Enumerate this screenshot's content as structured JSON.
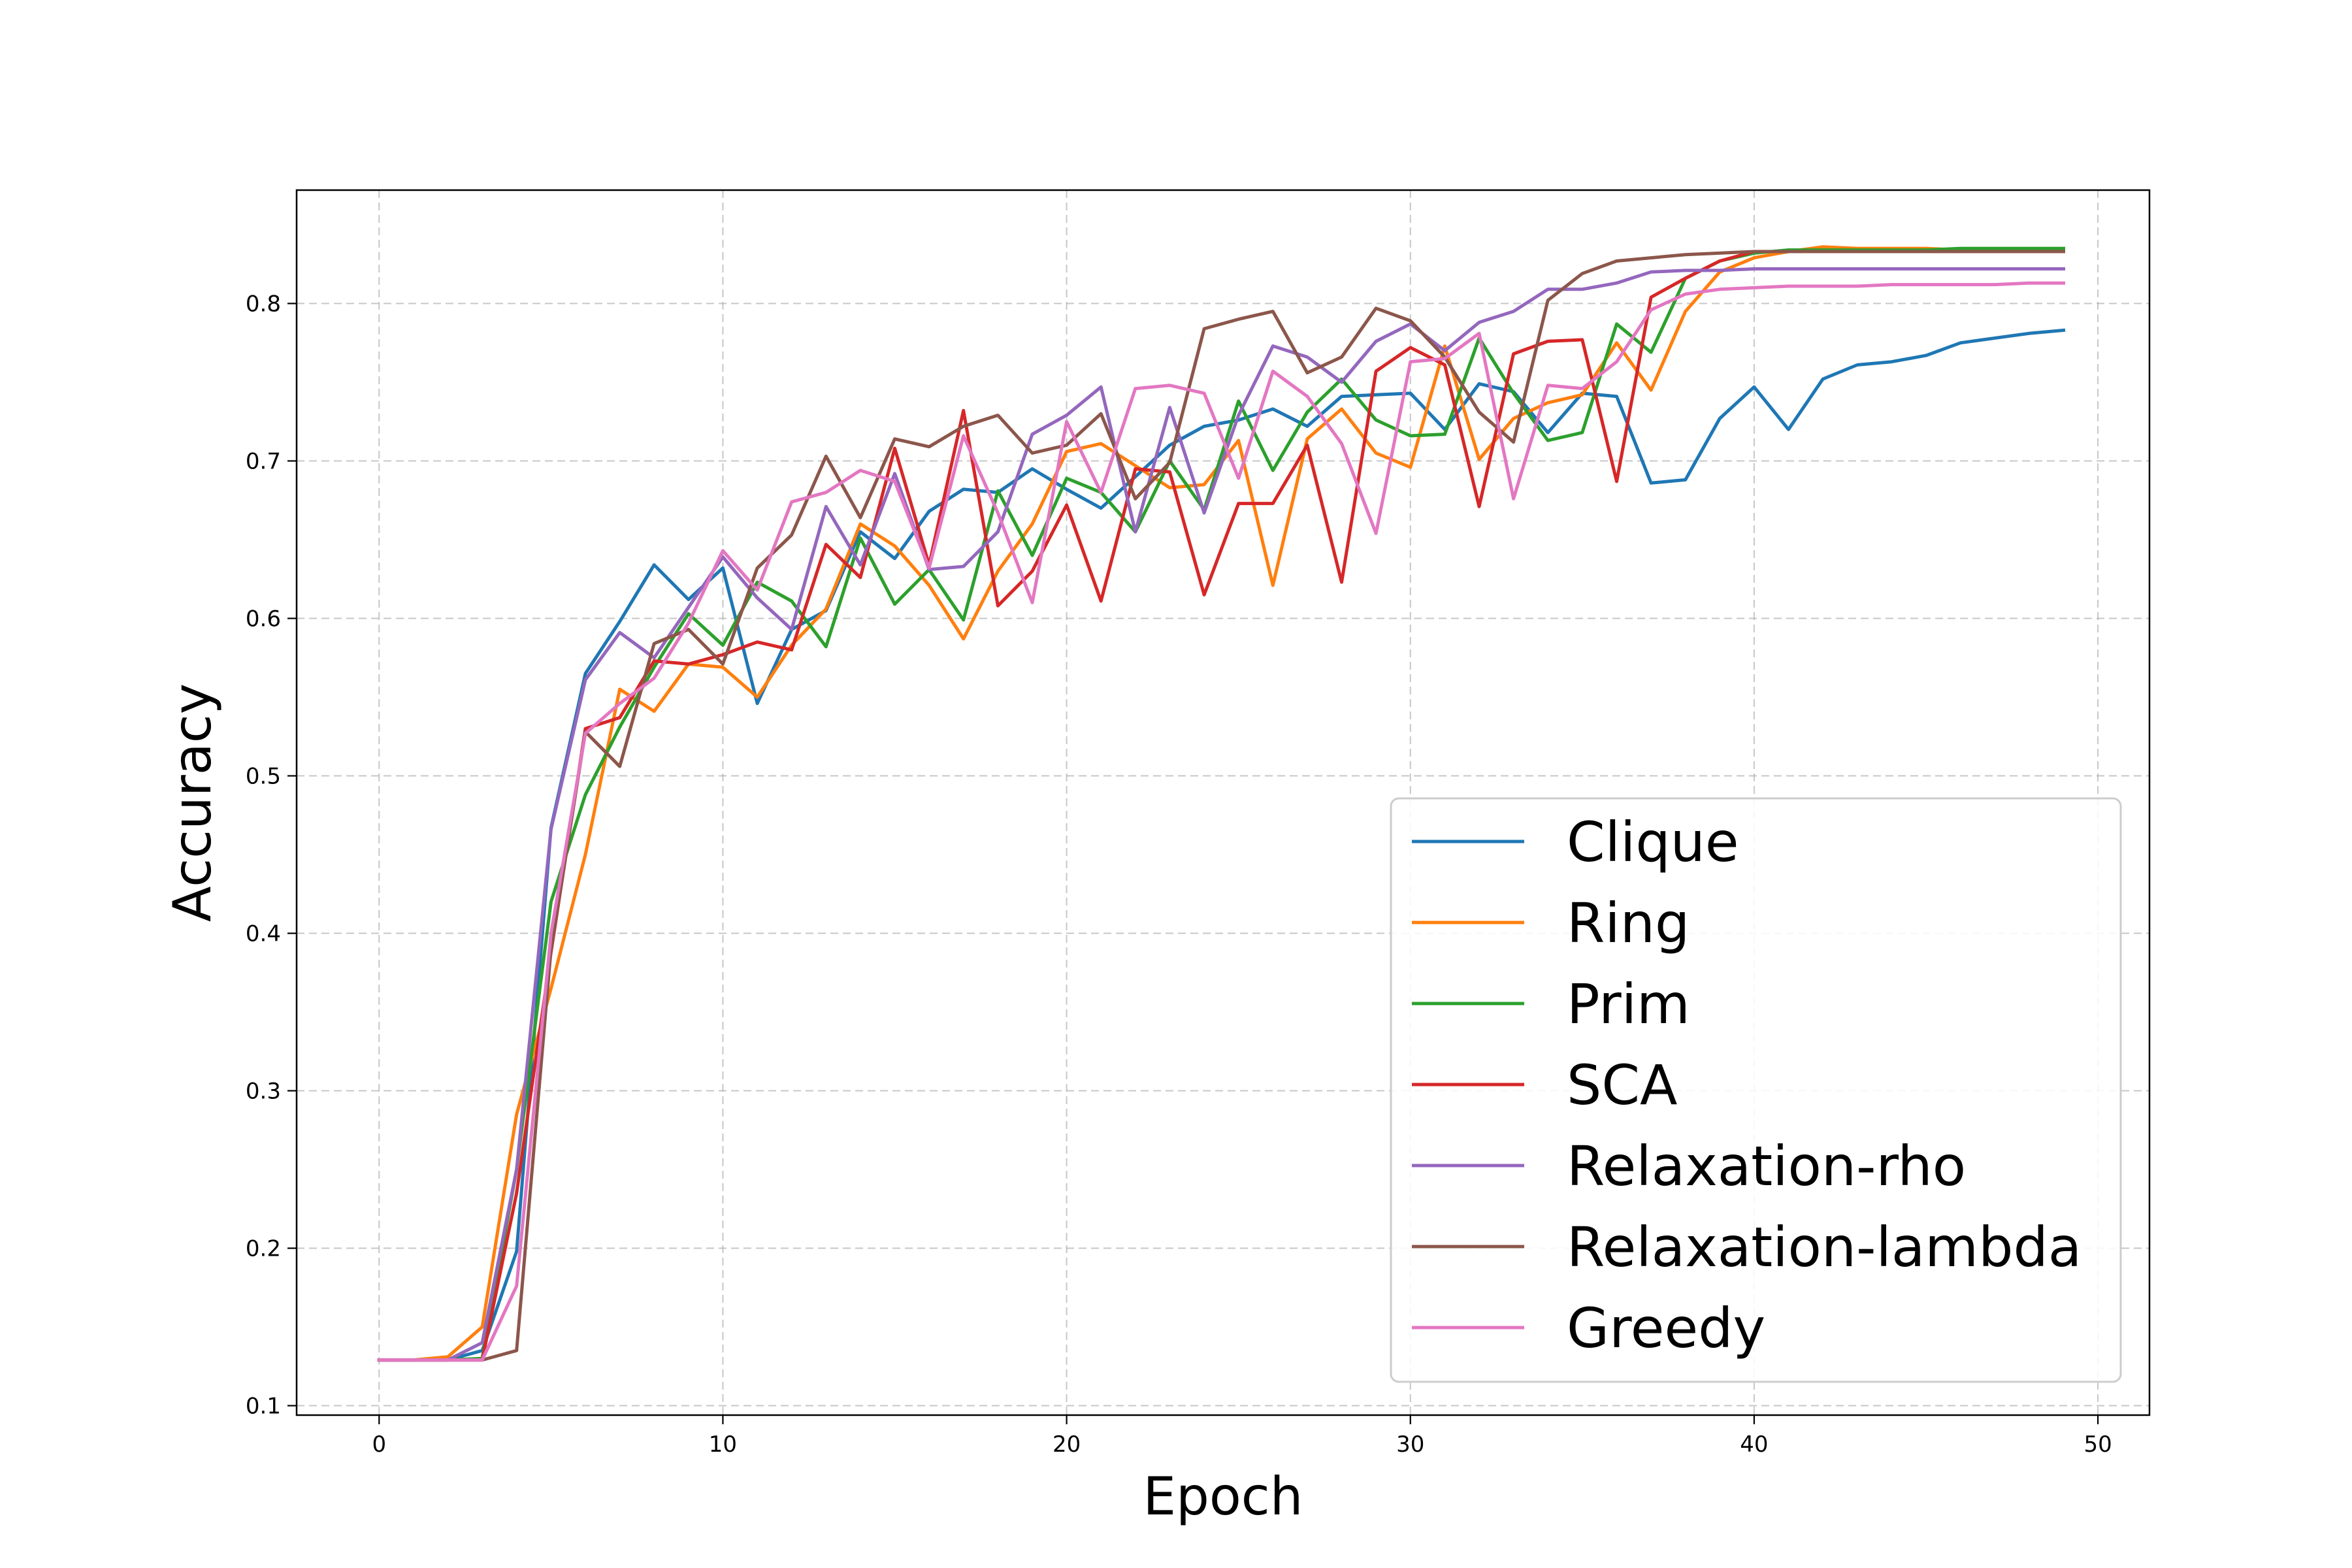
{
  "chart_data": {
    "type": "line",
    "title": "",
    "xlabel": "Epoch",
    "ylabel": "Accuracy",
    "xlim": [
      -2.4,
      51.5
    ],
    "ylim": [
      0.094,
      0.872
    ],
    "xticks": [
      0,
      10,
      20,
      30,
      40,
      50
    ],
    "yticks": [
      0.1,
      0.2,
      0.3,
      0.4,
      0.5,
      0.6,
      0.7,
      0.8
    ],
    "xtick_labels": [
      "0",
      "10",
      "20",
      "30",
      "40",
      "50"
    ],
    "ytick_labels": [
      "0.1",
      "0.2",
      "0.3",
      "0.4",
      "0.5",
      "0.6",
      "0.7",
      "0.8"
    ],
    "grid": true,
    "legend_position": "lower-right",
    "x": [
      0,
      1,
      2,
      3,
      4,
      5,
      6,
      7,
      8,
      9,
      10,
      11,
      12,
      13,
      14,
      15,
      16,
      17,
      18,
      19,
      20,
      21,
      22,
      23,
      24,
      25,
      26,
      27,
      28,
      29,
      30,
      31,
      32,
      33,
      34,
      35,
      36,
      37,
      38,
      39,
      40,
      41,
      42,
      43,
      44,
      45,
      46,
      47,
      48,
      49
    ],
    "series": [
      {
        "name": "Clique",
        "color": "#1f77b4",
        "values": [
          0.129,
          0.129,
          0.129,
          0.135,
          0.198,
          0.467,
          0.565,
          0.598,
          0.634,
          0.612,
          0.632,
          0.546,
          0.593,
          0.605,
          0.655,
          0.638,
          0.668,
          0.682,
          0.68,
          0.695,
          0.682,
          0.67,
          0.69,
          0.71,
          0.722,
          0.726,
          0.733,
          0.722,
          0.741,
          0.742,
          0.743,
          0.72,
          0.749,
          0.744,
          0.718,
          0.743,
          0.741,
          0.686,
          0.688,
          0.727,
          0.747,
          0.72,
          0.752,
          0.761,
          0.763,
          0.767,
          0.775,
          0.778,
          0.781,
          0.783
        ]
      },
      {
        "name": "Ring",
        "color": "#ff7f0e",
        "values": [
          0.129,
          0.129,
          0.131,
          0.15,
          0.285,
          0.365,
          0.45,
          0.555,
          0.541,
          0.571,
          0.569,
          0.55,
          0.583,
          0.606,
          0.66,
          0.646,
          0.621,
          0.587,
          0.63,
          0.66,
          0.706,
          0.711,
          0.697,
          0.683,
          0.685,
          0.713,
          0.621,
          0.714,
          0.733,
          0.705,
          0.696,
          0.773,
          0.701,
          0.727,
          0.737,
          0.742,
          0.775,
          0.745,
          0.795,
          0.82,
          0.829,
          0.833,
          0.836,
          0.835,
          0.835,
          0.835,
          0.834,
          0.834,
          0.834,
          0.834
        ]
      },
      {
        "name": "Prim",
        "color": "#2ca02c",
        "values": [
          0.129,
          0.129,
          0.129,
          0.13,
          0.25,
          0.42,
          0.488,
          0.531,
          0.569,
          0.603,
          0.583,
          0.623,
          0.611,
          0.582,
          0.651,
          0.609,
          0.631,
          0.599,
          0.681,
          0.64,
          0.689,
          0.68,
          0.655,
          0.7,
          0.669,
          0.738,
          0.694,
          0.731,
          0.752,
          0.726,
          0.716,
          0.717,
          0.778,
          0.743,
          0.713,
          0.718,
          0.787,
          0.769,
          0.816,
          0.827,
          0.832,
          0.834,
          0.834,
          0.834,
          0.834,
          0.834,
          0.835,
          0.835,
          0.835,
          0.835
        ]
      },
      {
        "name": "SCA",
        "color": "#d62728",
        "values": [
          0.129,
          0.129,
          0.129,
          0.129,
          0.235,
          0.388,
          0.53,
          0.537,
          0.573,
          0.571,
          0.577,
          0.585,
          0.58,
          0.647,
          0.626,
          0.708,
          0.634,
          0.732,
          0.608,
          0.63,
          0.672,
          0.611,
          0.695,
          0.693,
          0.615,
          0.673,
          0.673,
          0.71,
          0.623,
          0.757,
          0.772,
          0.761,
          0.671,
          0.768,
          0.776,
          0.777,
          0.687,
          0.804,
          0.816,
          0.827,
          0.833,
          0.833,
          0.833,
          0.833,
          0.833,
          0.833,
          0.833,
          0.833,
          0.833,
          0.833
        ]
      },
      {
        "name": "Relaxation-rho",
        "color": "#9467bd",
        "values": [
          0.129,
          0.129,
          0.129,
          0.14,
          0.25,
          0.466,
          0.561,
          0.591,
          0.575,
          0.607,
          0.639,
          0.613,
          0.593,
          0.671,
          0.634,
          0.692,
          0.631,
          0.633,
          0.655,
          0.717,
          0.729,
          0.747,
          0.655,
          0.734,
          0.667,
          0.729,
          0.773,
          0.766,
          0.75,
          0.776,
          0.787,
          0.77,
          0.788,
          0.795,
          0.809,
          0.809,
          0.813,
          0.82,
          0.821,
          0.821,
          0.822,
          0.822,
          0.822,
          0.822,
          0.822,
          0.822,
          0.822,
          0.822,
          0.822,
          0.822
        ]
      },
      {
        "name": "Relaxation-lambda",
        "color": "#8c564b",
        "values": [
          0.129,
          0.129,
          0.129,
          0.129,
          0.135,
          0.39,
          0.528,
          0.506,
          0.584,
          0.593,
          0.571,
          0.632,
          0.653,
          0.703,
          0.664,
          0.714,
          0.709,
          0.722,
          0.729,
          0.705,
          0.71,
          0.73,
          0.676,
          0.699,
          0.784,
          0.79,
          0.795,
          0.756,
          0.766,
          0.797,
          0.789,
          0.766,
          0.731,
          0.712,
          0.802,
          0.819,
          0.827,
          0.829,
          0.831,
          0.832,
          0.833,
          0.833,
          0.833,
          0.833,
          0.833,
          0.833,
          0.833,
          0.833,
          0.833,
          0.833
        ]
      },
      {
        "name": "Greedy",
        "color": "#e377c2",
        "values": [
          0.129,
          0.129,
          0.129,
          0.129,
          0.176,
          0.4,
          0.527,
          0.546,
          0.562,
          0.597,
          0.643,
          0.618,
          0.674,
          0.68,
          0.694,
          0.687,
          0.632,
          0.716,
          0.667,
          0.61,
          0.725,
          0.68,
          0.746,
          0.748,
          0.743,
          0.689,
          0.757,
          0.741,
          0.711,
          0.654,
          0.763,
          0.765,
          0.781,
          0.676,
          0.748,
          0.746,
          0.763,
          0.796,
          0.806,
          0.809,
          0.81,
          0.811,
          0.811,
          0.811,
          0.812,
          0.812,
          0.812,
          0.812,
          0.813,
          0.813
        ]
      }
    ]
  }
}
